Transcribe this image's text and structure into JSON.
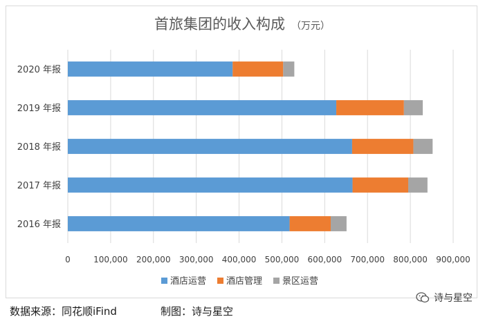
{
  "chart_data": {
    "type": "bar",
    "orientation": "horizontal",
    "stacked": true,
    "title": "首旅集团的收入构成",
    "unit": "（万元）",
    "categories": [
      "2020 年报",
      "2019 年报",
      "2018 年报",
      "2017 年报",
      "2016 年报"
    ],
    "series": [
      {
        "name": "酒店运营",
        "color": "#5b9bd5",
        "values": [
          385000,
          627000,
          664000,
          665000,
          518000
        ]
      },
      {
        "name": "酒店管理",
        "color": "#ed7d31",
        "values": [
          118000,
          158000,
          143000,
          130000,
          96000
        ]
      },
      {
        "name": "景区运营",
        "color": "#a5a5a5",
        "values": [
          26000,
          44000,
          45000,
          45000,
          37000
        ]
      }
    ],
    "xlim": [
      0,
      900000
    ],
    "xticks": [
      0,
      100000,
      200000,
      300000,
      400000,
      500000,
      600000,
      700000,
      800000,
      900000
    ],
    "xtick_labels": [
      "0",
      "100,000",
      "200,000",
      "300,000",
      "400,000",
      "500,000",
      "600,000",
      "700,000",
      "800,000",
      "900,000"
    ],
    "grid": "vertical",
    "legend": "bottom"
  },
  "footer": {
    "source": "数据来源：同花顺iFind",
    "credit": "制图：诗与星空",
    "watermark": "诗与星空"
  }
}
